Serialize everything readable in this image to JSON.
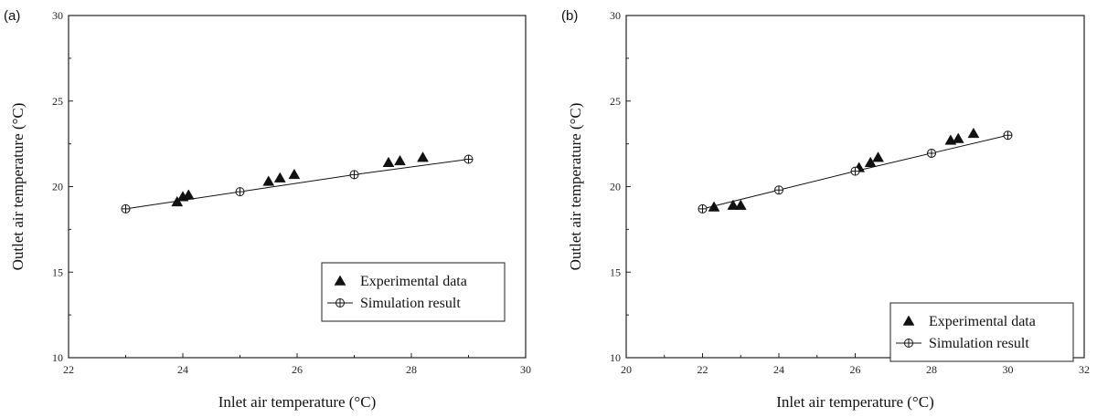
{
  "chart_data": [
    {
      "type": "scatter",
      "panel_label": "(a)",
      "xlabel": "Inlet air temperature (°C)",
      "ylabel": "Outlet air temperature (°C)",
      "xlim": [
        22,
        30
      ],
      "ylim": [
        10,
        30
      ],
      "xticks": [
        "22",
        "24",
        "26",
        "28",
        "30"
      ],
      "yticks": [
        "10",
        "15",
        "20",
        "25",
        "30"
      ],
      "legend_position": "bottom-right",
      "series": [
        {
          "name": "Experimental data",
          "marker": "triangle",
          "points": [
            [
              23.9,
              19.1
            ],
            [
              24.0,
              19.4
            ],
            [
              24.1,
              19.5
            ],
            [
              25.5,
              20.3
            ],
            [
              25.7,
              20.5
            ],
            [
              25.95,
              20.7
            ],
            [
              27.6,
              21.4
            ],
            [
              27.8,
              21.5
            ],
            [
              28.2,
              21.7
            ]
          ]
        },
        {
          "name": "Simulation result",
          "marker": "circle-plus",
          "line": true,
          "points": [
            [
              23,
              18.7
            ],
            [
              25,
              19.7
            ],
            [
              27,
              20.7
            ],
            [
              29,
              21.6
            ]
          ]
        }
      ]
    },
    {
      "type": "scatter",
      "panel_label": "(b)",
      "xlabel": "Inlet air temperature (°C)",
      "ylabel": "Outlet air temperature (°C)",
      "xlim": [
        20,
        32
      ],
      "ylim": [
        10,
        30
      ],
      "xticks": [
        "20",
        "22",
        "24",
        "26",
        "28",
        "30",
        "32"
      ],
      "yticks": [
        "10",
        "15",
        "20",
        "25",
        "30"
      ],
      "legend_position": "bottom-right",
      "series": [
        {
          "name": "Experimental data",
          "marker": "triangle",
          "points": [
            [
              22.3,
              18.8
            ],
            [
              22.8,
              18.9
            ],
            [
              23.0,
              18.9
            ],
            [
              26.1,
              21.1
            ],
            [
              26.4,
              21.4
            ],
            [
              26.6,
              21.7
            ],
            [
              28.5,
              22.7
            ],
            [
              28.7,
              22.8
            ],
            [
              29.1,
              23.1
            ]
          ]
        },
        {
          "name": "Simulation result",
          "marker": "circle-plus",
          "line": true,
          "points": [
            [
              22,
              18.7
            ],
            [
              24,
              19.8
            ],
            [
              26,
              20.9
            ],
            [
              28,
              21.95
            ],
            [
              30,
              23.0
            ]
          ]
        }
      ]
    }
  ]
}
